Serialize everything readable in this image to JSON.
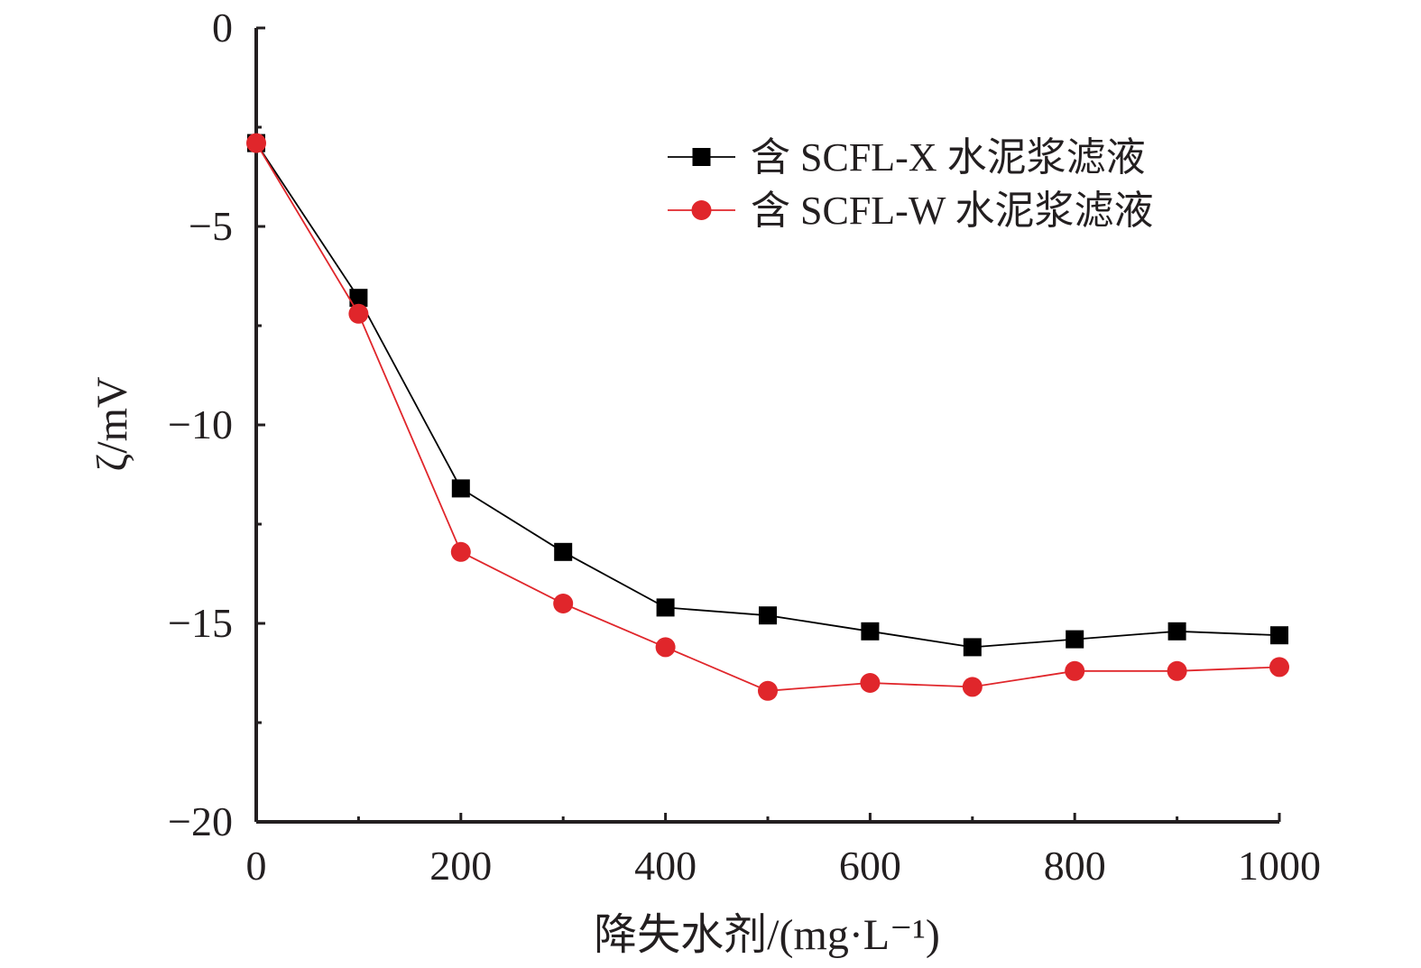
{
  "chart_data": {
    "type": "line",
    "xlabel": "降失水剂/(mg·L⁻¹)",
    "ylabel": "ζ/mV",
    "xlim": [
      0,
      1000
    ],
    "ylim": [
      -20,
      0
    ],
    "xticks": [
      0,
      200,
      400,
      600,
      800,
      1000
    ],
    "yticks": [
      0,
      -5,
      -10,
      -15,
      -20
    ],
    "xtick_labels": [
      "0",
      "200",
      "400",
      "600",
      "800",
      "1000"
    ],
    "ytick_labels": [
      "0",
      "−5",
      "−10",
      "−15",
      "−20"
    ],
    "legend_position": "top-right",
    "x": [
      0,
      100,
      200,
      300,
      400,
      500,
      600,
      700,
      800,
      900,
      1000
    ],
    "series": [
      {
        "name": "含 SCFL-X 水泥浆滤液",
        "color": "#000000",
        "marker": "square",
        "values": [
          -2.9,
          -6.8,
          -11.6,
          -13.2,
          -14.6,
          -14.8,
          -15.2,
          -15.6,
          -15.4,
          -15.2,
          -15.3
        ]
      },
      {
        "name": "含 SCFL-W 水泥浆滤液",
        "color": "#e0262b",
        "marker": "circle",
        "values": [
          -2.9,
          -7.2,
          -13.2,
          -14.5,
          -15.6,
          -16.7,
          -16.5,
          -16.6,
          -16.2,
          -16.2,
          -16.1
        ]
      }
    ]
  }
}
